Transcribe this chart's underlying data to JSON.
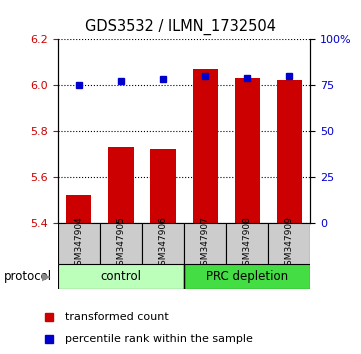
{
  "title": "GDS3532 / ILMN_1732504",
  "samples": [
    "GSM347904",
    "GSM347905",
    "GSM347906",
    "GSM347907",
    "GSM347908",
    "GSM347909"
  ],
  "red_values": [
    5.52,
    5.73,
    5.72,
    6.07,
    6.03,
    6.02
  ],
  "blue_values": [
    75.0,
    77.0,
    78.0,
    80.0,
    79.0,
    80.0
  ],
  "groups": [
    {
      "label": "control",
      "indices": [
        0,
        1,
        2
      ],
      "color": "#bbffbb"
    },
    {
      "label": "PRC depletion",
      "indices": [
        3,
        4,
        5
      ],
      "color": "#44dd44"
    }
  ],
  "ylim_left": [
    5.4,
    6.2
  ],
  "ylim_right": [
    0,
    100
  ],
  "yticks_left": [
    5.4,
    5.6,
    5.8,
    6.0,
    6.2
  ],
  "yticks_right": [
    0,
    25,
    50,
    75,
    100
  ],
  "ytick_labels_right": [
    "0",
    "25",
    "50",
    "75",
    "100%"
  ],
  "red_color": "#cc0000",
  "blue_color": "#0000cc",
  "bar_bottom": 5.4,
  "bar_width": 0.6,
  "protocol_label": "protocol",
  "tick_label_color_left": "#cc0000",
  "tick_label_color_right": "#0000cc",
  "legend_red": "transformed count",
  "legend_blue": "percentile rank within the sample"
}
